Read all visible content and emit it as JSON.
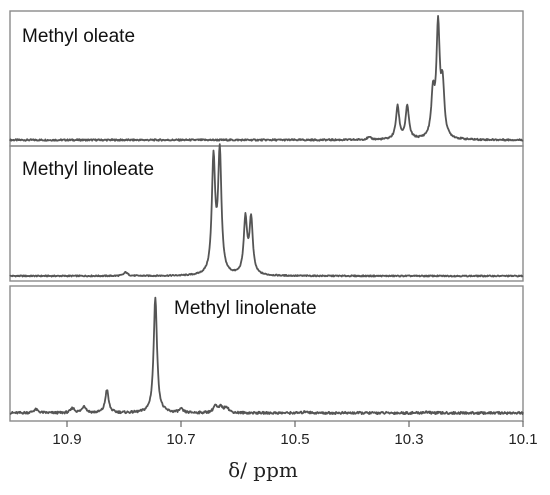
{
  "chart_data": {
    "type": "line",
    "xlabel": "δ/ ppm",
    "xlim": [
      10.1,
      11.0
    ],
    "x_reversed": true,
    "xticks": [
      "10.9",
      "10.7",
      "10.5",
      "10.3",
      "10.1"
    ],
    "xtick_values": [
      10.9,
      10.7,
      10.5,
      10.3,
      10.1
    ],
    "series": [
      {
        "name": "Methyl oleate",
        "baseline_noise": 0.015,
        "peaks": [
          {
            "ppm": 10.32,
            "height": 0.3,
            "width": 0.0035
          },
          {
            "ppm": 10.303,
            "height": 0.3,
            "width": 0.0035
          },
          {
            "ppm": 10.258,
            "height": 0.38,
            "width": 0.0035
          },
          {
            "ppm": 10.249,
            "height": 1.0,
            "width": 0.0035
          },
          {
            "ppm": 10.241,
            "height": 0.45,
            "width": 0.0035
          },
          {
            "ppm": 10.37,
            "height": 0.02,
            "width": 0.005
          }
        ]
      },
      {
        "name": "Methyl linoleate",
        "baseline_noise": 0.01,
        "peaks": [
          {
            "ppm": 10.643,
            "height": 0.93,
            "width": 0.0035
          },
          {
            "ppm": 10.632,
            "height": 0.98,
            "width": 0.0035
          },
          {
            "ppm": 10.587,
            "height": 0.45,
            "width": 0.0035
          },
          {
            "ppm": 10.577,
            "height": 0.45,
            "width": 0.0035
          },
          {
            "ppm": 10.797,
            "height": 0.03,
            "width": 0.004
          }
        ]
      },
      {
        "name": "Methyl linolenate",
        "baseline_noise": 0.02,
        "peaks": [
          {
            "ppm": 10.745,
            "height": 1.0,
            "width": 0.0035
          },
          {
            "ppm": 10.83,
            "height": 0.2,
            "width": 0.0035
          },
          {
            "ppm": 10.87,
            "height": 0.06,
            "width": 0.004
          },
          {
            "ppm": 10.89,
            "height": 0.04,
            "width": 0.004
          },
          {
            "ppm": 10.955,
            "height": 0.03,
            "width": 0.005
          },
          {
            "ppm": 10.64,
            "height": 0.06,
            "width": 0.004
          },
          {
            "ppm": 10.63,
            "height": 0.05,
            "width": 0.004
          },
          {
            "ppm": 10.62,
            "height": 0.05,
            "width": 0.004
          },
          {
            "ppm": 10.7,
            "height": 0.03,
            "width": 0.004
          },
          {
            "ppm": 10.48,
            "height": 0.015,
            "width": 0.004
          },
          {
            "ppm": 10.27,
            "height": 0.01,
            "width": 0.004
          }
        ]
      }
    ]
  }
}
